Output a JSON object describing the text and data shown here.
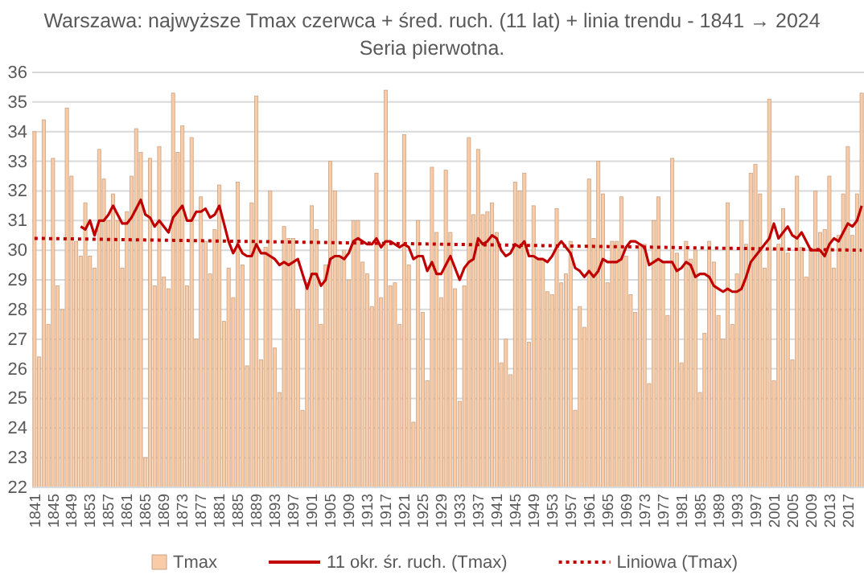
{
  "chart_data": {
    "type": "bar",
    "title": "Warszawa: najwyższe Tmax czerwca + śred. ruch. (11 lat) + linia trendu - 1841 → 2024",
    "subtitle": "Seria pierwotna.",
    "x": [
      1841,
      1842,
      1843,
      1844,
      1845,
      1846,
      1847,
      1848,
      1849,
      1850,
      1851,
      1852,
      1853,
      1854,
      1855,
      1856,
      1857,
      1858,
      1859,
      1860,
      1861,
      1862,
      1863,
      1864,
      1865,
      1866,
      1867,
      1868,
      1869,
      1870,
      1871,
      1872,
      1873,
      1874,
      1875,
      1876,
      1877,
      1878,
      1879,
      1880,
      1881,
      1882,
      1883,
      1884,
      1885,
      1886,
      1887,
      1888,
      1889,
      1890,
      1891,
      1892,
      1893,
      1894,
      1895,
      1896,
      1897,
      1898,
      1899,
      1900,
      1901,
      1902,
      1903,
      1904,
      1905,
      1906,
      1907,
      1908,
      1909,
      1910,
      1911,
      1912,
      1913,
      1914,
      1915,
      1916,
      1917,
      1918,
      1919,
      1920,
      1921,
      1922,
      1923,
      1924,
      1925,
      1926,
      1927,
      1928,
      1929,
      1930,
      1931,
      1932,
      1933,
      1934,
      1935,
      1936,
      1937,
      1938,
      1939,
      1940,
      1941,
      1942,
      1943,
      1944,
      1945,
      1946,
      1947,
      1948,
      1949,
      1950,
      1951,
      1952,
      1953,
      1954,
      1955,
      1956,
      1957,
      1958,
      1959,
      1960,
      1961,
      1962,
      1963,
      1964,
      1965,
      1966,
      1967,
      1968,
      1969,
      1970,
      1971,
      1972,
      1973,
      1974,
      1975,
      1976,
      1977,
      1978,
      1979,
      1980,
      1981,
      1982,
      1983,
      1984,
      1985,
      1986,
      1987,
      1988,
      1989,
      1990,
      1991,
      1992,
      1993,
      1994,
      1995,
      1996,
      1997,
      1998,
      1999,
      2000,
      2001,
      2002,
      2003,
      2004,
      2005,
      2006,
      2007,
      2008,
      2009,
      2010,
      2011,
      2012,
      2013,
      2014,
      2015,
      2016,
      2017,
      2018,
      2019,
      2020
    ],
    "series": [
      {
        "name": "Tmax",
        "color": "#f9cba6",
        "values": [
          34.0,
          26.4,
          34.4,
          27.5,
          33.1,
          28.8,
          28.0,
          34.8,
          32.5,
          30.3,
          29.8,
          31.6,
          29.8,
          29.4,
          33.4,
          32.4,
          31.0,
          31.9,
          31.0,
          29.4,
          31.3,
          32.5,
          34.1,
          33.3,
          23.0,
          33.1,
          28.8,
          33.5,
          29.1,
          28.7,
          35.3,
          33.3,
          34.2,
          28.8,
          33.8,
          27.0,
          31.8,
          30.3,
          29.2,
          30.7,
          32.2,
          27.6,
          29.4,
          28.4,
          32.3,
          29.5,
          26.1,
          31.6,
          35.2,
          26.3,
          30.1,
          32.0,
          26.7,
          25.2,
          30.8,
          30.4,
          30.4,
          28.0,
          24.6,
          28.9,
          31.5,
          30.7,
          27.5,
          29.5,
          33.0,
          32.0,
          29.8,
          30.0,
          29.0,
          31.0,
          31.0,
          29.6,
          29.2,
          28.1,
          32.6,
          28.4,
          35.4,
          28.8,
          28.9,
          27.5,
          33.9,
          29.5,
          24.2,
          31.0,
          27.9,
          25.6,
          32.8,
          30.6,
          28.4,
          32.7,
          30.6,
          28.7,
          24.9,
          28.8,
          33.8,
          31.2,
          33.4,
          31.2,
          31.3,
          31.6,
          30.6,
          26.2,
          27.0,
          25.8,
          32.3,
          32.0,
          32.6,
          26.9,
          31.5,
          29.7,
          29.7,
          28.6,
          28.5,
          31.4,
          28.9,
          29.2,
          30.3,
          24.6,
          28.1,
          27.4,
          32.4,
          30.4,
          33.0,
          31.9,
          28.9,
          30.3,
          30.3,
          31.8,
          29.8,
          28.5,
          27.9,
          30.2,
          30.2,
          25.5,
          31.0,
          31.8,
          29.6,
          27.8,
          33.1,
          29.9,
          26.2,
          30.3,
          29.7,
          30.0,
          25.2,
          27.2,
          30.3,
          29.6,
          27.8,
          27.0,
          31.6,
          27.5,
          29.2,
          31.0,
          30.2,
          32.6,
          32.9,
          31.9,
          29.4,
          35.1,
          25.6,
          30.2,
          31.4,
          29.9,
          26.3,
          32.5,
          30.1,
          29.1,
          30.0,
          32.0,
          30.6,
          30.7,
          32.5,
          29.4,
          30.5,
          31.9,
          33.5,
          30.5,
          31.9,
          35.3
        ]
      },
      {
        "name": "11 okr. śr. ruch. (Tmax)",
        "type": "line",
        "color": "#c00000",
        "line_style": "solid",
        "values": [
          null,
          null,
          null,
          null,
          null,
          null,
          null,
          null,
          null,
          null,
          30.8,
          30.7,
          31.0,
          30.5,
          31.0,
          31.0,
          31.2,
          31.5,
          31.2,
          30.9,
          30.9,
          31.1,
          31.4,
          31.7,
          31.2,
          31.1,
          30.8,
          31.0,
          30.8,
          30.6,
          31.1,
          31.3,
          31.5,
          31.0,
          31.0,
          31.3,
          31.3,
          31.4,
          31.1,
          31.2,
          31.5,
          30.9,
          30.3,
          29.9,
          30.2,
          29.9,
          29.8,
          29.8,
          30.2,
          29.9,
          29.9,
          29.8,
          29.7,
          29.5,
          29.6,
          29.5,
          29.6,
          29.7,
          29.2,
          28.7,
          29.2,
          29.2,
          28.8,
          29.0,
          29.7,
          29.8,
          29.8,
          29.7,
          29.9,
          30.3,
          30.4,
          30.3,
          30.2,
          30.2,
          30.4,
          30.1,
          30.3,
          30.3,
          30.2,
          30.1,
          30.2,
          30.1,
          29.7,
          29.8,
          29.8,
          29.3,
          29.6,
          29.2,
          29.2,
          29.5,
          29.8,
          29.4,
          29.0,
          29.4,
          29.6,
          29.7,
          30.4,
          30.2,
          30.3,
          30.5,
          30.4,
          30.0,
          29.8,
          29.9,
          30.2,
          30.1,
          30.3,
          29.8,
          29.8,
          29.7,
          29.7,
          29.6,
          29.8,
          30.1,
          30.3,
          30.1,
          29.9,
          29.4,
          29.3,
          29.1,
          29.3,
          29.1,
          29.3,
          29.7,
          29.6,
          29.6,
          29.6,
          29.7,
          30.1,
          30.3,
          30.3,
          30.2,
          30.1,
          29.5,
          29.6,
          29.7,
          29.6,
          29.6,
          29.6,
          29.3,
          29.4,
          29.6,
          29.5,
          29.1,
          29.2,
          29.2,
          29.1,
          28.8,
          28.7,
          28.6,
          28.7,
          28.6,
          28.6,
          28.7,
          29.1,
          29.6,
          29.8,
          30.0,
          30.2,
          30.4,
          30.9,
          30.4,
          30.6,
          30.8,
          30.5,
          30.4,
          30.6,
          30.3,
          30.0,
          30.0,
          30.0,
          29.8,
          30.2,
          30.4,
          30.3,
          30.6,
          30.9,
          30.8,
          31.0,
          31.5
        ]
      },
      {
        "name": "Liniowa (Tmax)",
        "type": "line",
        "color": "#c00000",
        "line_style": "dotted",
        "x": [
          1841,
          2020
        ],
        "values": [
          30.4,
          30.0
        ]
      }
    ],
    "xlim": [
      1840.5,
      2020.5
    ],
    "xticks": [
      1841,
      1845,
      1849,
      1853,
      1857,
      1861,
      1865,
      1869,
      1873,
      1877,
      1881,
      1885,
      1889,
      1893,
      1897,
      1901,
      1905,
      1909,
      1913,
      1917,
      1921,
      1925,
      1929,
      1933,
      1937,
      1941,
      1945,
      1949,
      1953,
      1957,
      1961,
      1965,
      1969,
      1973,
      1977,
      1981,
      1985,
      1989,
      1993,
      1997,
      2001,
      2005,
      2009,
      2013,
      2017
    ],
    "ylim": [
      22,
      36
    ],
    "yticks": [
      22,
      23,
      24,
      25,
      26,
      27,
      28,
      29,
      30,
      31,
      32,
      33,
      34,
      35,
      36
    ],
    "grid": "y",
    "legend": "bottom"
  }
}
